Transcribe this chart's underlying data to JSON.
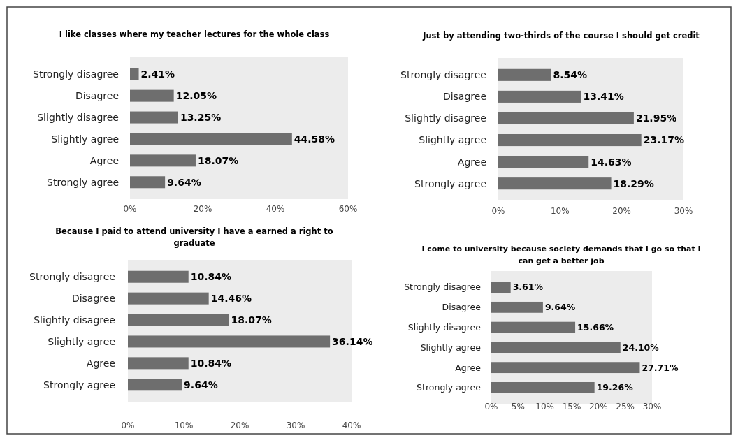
{
  "chart_data": [
    {
      "type": "bar",
      "orientation": "horizontal",
      "title": "I like classes where my teacher lectures for the whole class",
      "categories": [
        "Strongly disagree",
        "Disagree",
        "Slightly disagree",
        "Slightly agree",
        "Agree",
        "Strongly agree"
      ],
      "values": [
        2.41,
        12.05,
        13.25,
        44.58,
        18.07,
        9.64
      ],
      "value_labels": [
        "2.41%",
        "12.05%",
        "13.25%",
        "44.58%",
        "18.07%",
        "9.64%"
      ],
      "color": "#6e6e6e",
      "xlim": [
        0,
        60
      ],
      "xticks": [
        {
          "value": 0,
          "label": "0%"
        },
        {
          "value": 20,
          "label": "20%"
        },
        {
          "value": 40,
          "label": "40%"
        },
        {
          "value": 60,
          "label": "60%"
        }
      ]
    },
    {
      "type": "bar",
      "orientation": "horizontal",
      "title": "Just by attending two-thirds of the course I should get credit",
      "categories": [
        "Strongly disagree",
        "Disagree",
        "Slightly disagree",
        "Slightly agree",
        "Agree",
        "Strongly agree"
      ],
      "values": [
        8.54,
        13.41,
        21.95,
        23.17,
        14.63,
        18.29
      ],
      "value_labels": [
        "8.54%",
        "13.41%",
        "21.95%",
        "23.17%",
        "14.63%",
        "18.29%"
      ],
      "color": "#6e6e6e",
      "xlim": [
        0,
        30
      ],
      "xticks": [
        {
          "value": 0,
          "label": "0%"
        },
        {
          "value": 10,
          "label": "10%"
        },
        {
          "value": 20,
          "label": "20%"
        },
        {
          "value": 30,
          "label": "30%"
        }
      ]
    },
    {
      "type": "bar",
      "orientation": "horizontal",
      "title": "Because I paid to attend university I have a earned a right to graduate",
      "categories": [
        "Strongly disagree",
        "Disagree",
        "Slightly disagree",
        "Slightly agree",
        "Agree",
        "Strongly agree"
      ],
      "values": [
        10.84,
        14.46,
        18.07,
        36.14,
        10.84,
        9.64
      ],
      "value_labels": [
        "10.84%",
        "14.46%",
        "18.07%",
        "36.14%",
        "10.84%",
        "9.64%"
      ],
      "color": "#6e6e6e",
      "xlim": [
        0,
        40
      ],
      "xticks": [
        {
          "value": 0,
          "label": "0%"
        },
        {
          "value": 10,
          "label": "10%"
        },
        {
          "value": 20,
          "label": "20%"
        },
        {
          "value": 30,
          "label": "30%"
        },
        {
          "value": 40,
          "label": "40%"
        }
      ]
    },
    {
      "type": "bar",
      "orientation": "horizontal",
      "title": "I come to university because society demands that I go so that I can get a better job",
      "categories": [
        "Strongly disagree",
        "Disagree",
        "Slightly disagree",
        "Slightly agree",
        "Agree",
        "Strongly agree"
      ],
      "values": [
        3.61,
        9.64,
        15.66,
        24.1,
        27.71,
        19.26
      ],
      "value_labels": [
        "3.61%",
        "9.64%",
        "15.66%",
        "24.10%",
        "27.71%",
        "19.26%"
      ],
      "color": "#6e6e6e",
      "xlim": [
        0,
        30
      ],
      "xticks": [
        {
          "value": 0,
          "label": "0%"
        },
        {
          "value": 5,
          "label": "5%"
        },
        {
          "value": 10,
          "label": "10%"
        },
        {
          "value": 15,
          "label": "15%"
        },
        {
          "value": 20,
          "label": "20%"
        },
        {
          "value": 25,
          "label": "25%"
        },
        {
          "value": 30,
          "label": "30%"
        }
      ]
    }
  ]
}
